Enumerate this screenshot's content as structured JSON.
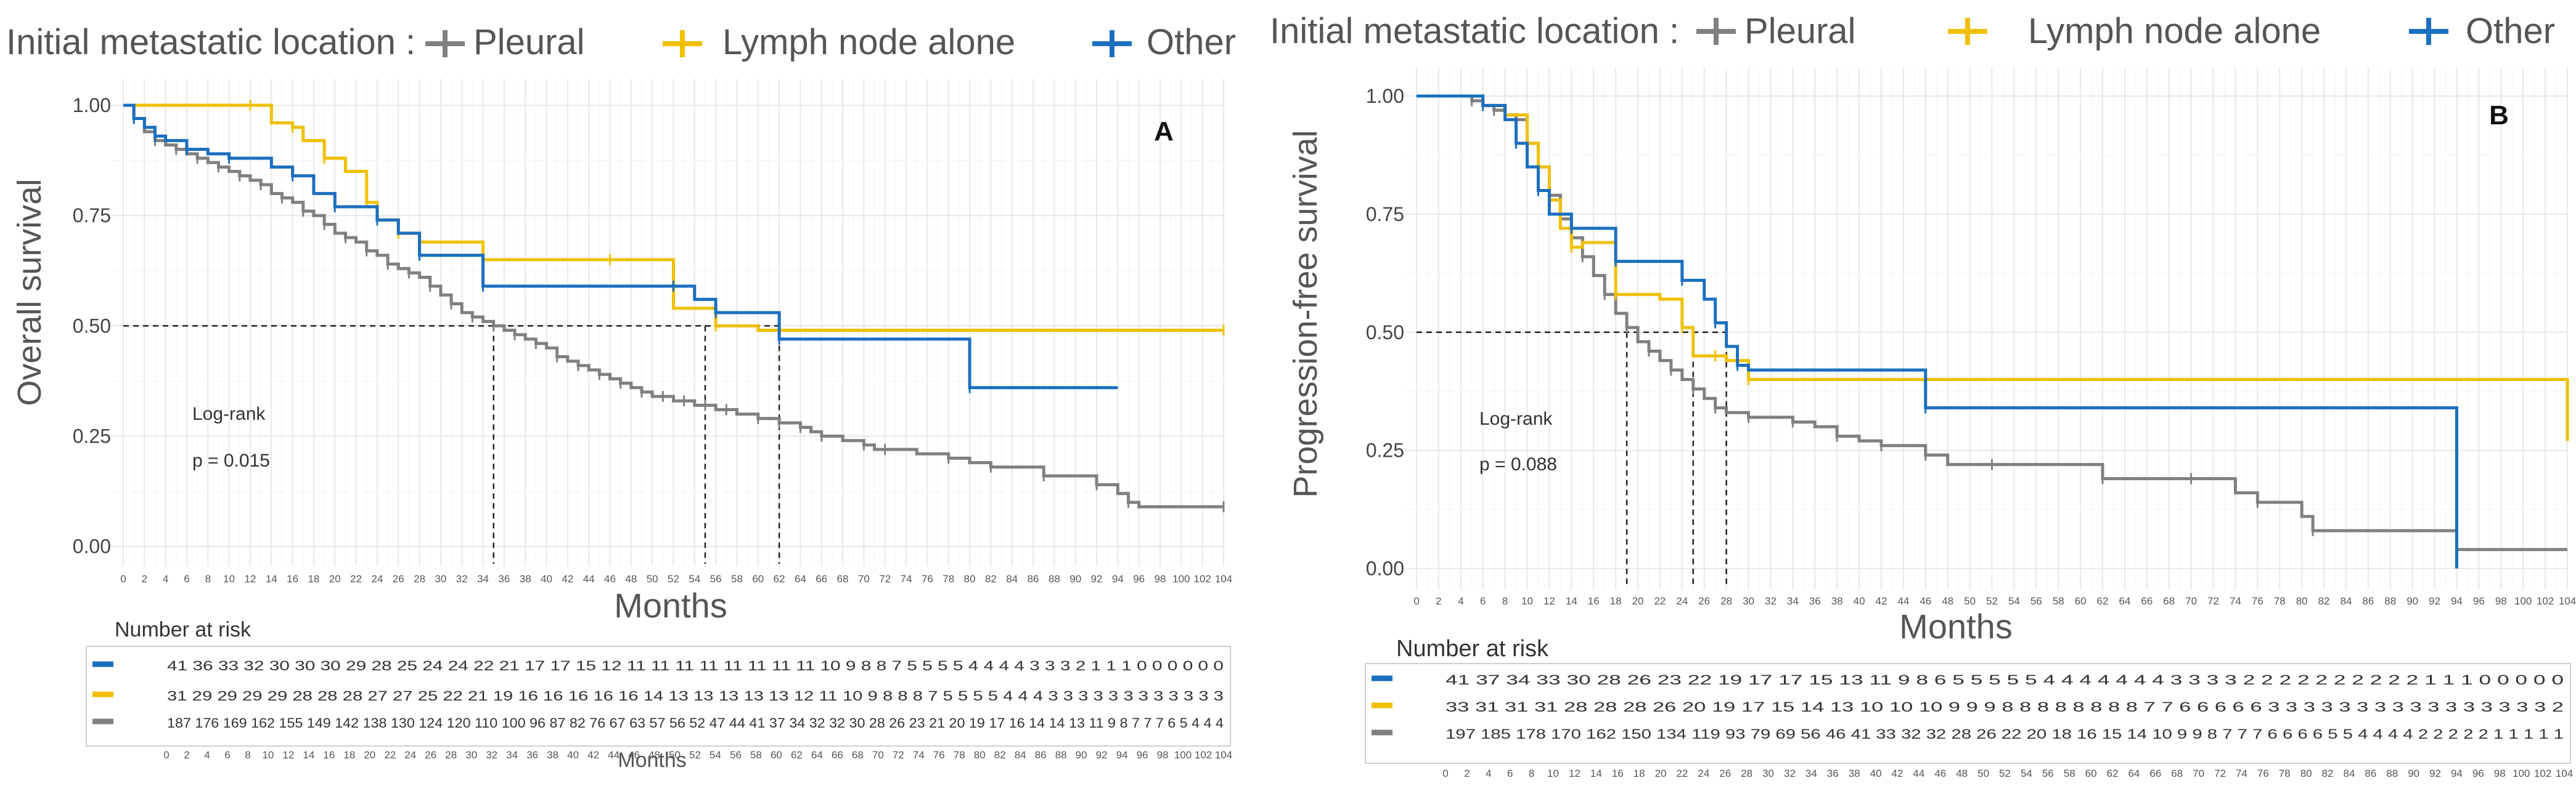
{
  "colors": {
    "pleural": "#808080",
    "lymph": "#F0C000",
    "other": "#1B6FC0",
    "grid": "#E8E8E8",
    "gridMinor": "#F3F3F3",
    "panel": "#FFFFFF",
    "text": "#555555",
    "risk_table_border": "#D0D0D0"
  },
  "chart_data": [
    {
      "type": "line",
      "subtype": "kaplan-meier",
      "panel_label": "A",
      "legend_title": "Initial metastatic location :",
      "legend_labels": [
        "Pleural",
        "Lymph node alone",
        "Other"
      ],
      "ylabel": "Overall survival",
      "xlabel": "Months",
      "ylim": [
        0,
        1
      ],
      "xlim": [
        0,
        104
      ],
      "y_ticks": [
        "0.00",
        "0.25",
        "0.50",
        "0.75",
        "1.00"
      ],
      "x_ticks": [
        0,
        2,
        4,
        6,
        8,
        10,
        12,
        14,
        16,
        18,
        20,
        22,
        24,
        26,
        28,
        30,
        32,
        34,
        36,
        38,
        40,
        42,
        44,
        46,
        48,
        50,
        52,
        54,
        56,
        58,
        60,
        62,
        64,
        66,
        68,
        70,
        72,
        74,
        76,
        78,
        80,
        82,
        84,
        86,
        88,
        90,
        92,
        94,
        96,
        98,
        100,
        102,
        104
      ],
      "annotation_title": "Log-rank",
      "annotation_p": "p = 0.015",
      "medians": {
        "Pleural": 35,
        "Lymph node alone": 55,
        "Other": 62
      },
      "series": [
        {
          "name": "Pleural",
          "key": "pleural",
          "x": [
            0,
            1,
            2,
            3,
            4,
            5,
            6,
            7,
            8,
            9,
            10,
            11,
            12,
            13,
            14,
            15,
            16,
            17,
            18,
            19,
            20,
            21,
            22,
            23,
            24,
            25,
            26,
            27,
            28,
            29,
            30,
            31,
            32,
            33,
            34,
            35,
            36,
            37,
            38,
            39,
            40,
            41,
            42,
            43,
            44,
            45,
            46,
            47,
            48,
            49,
            50,
            51,
            52,
            53,
            54,
            55,
            56,
            57,
            58,
            60,
            61,
            62,
            63,
            64,
            65,
            66,
            68,
            70,
            71,
            72,
            75,
            78,
            80,
            82,
            86,
            87,
            90,
            92,
            94,
            95,
            96,
            104
          ],
          "values": [
            1.0,
            0.97,
            0.94,
            0.92,
            0.91,
            0.9,
            0.89,
            0.88,
            0.87,
            0.86,
            0.85,
            0.84,
            0.83,
            0.82,
            0.8,
            0.79,
            0.78,
            0.76,
            0.75,
            0.73,
            0.71,
            0.7,
            0.69,
            0.67,
            0.66,
            0.64,
            0.63,
            0.62,
            0.61,
            0.59,
            0.57,
            0.55,
            0.53,
            0.52,
            0.51,
            0.5,
            0.49,
            0.48,
            0.47,
            0.46,
            0.45,
            0.43,
            0.42,
            0.41,
            0.4,
            0.39,
            0.38,
            0.37,
            0.36,
            0.35,
            0.34,
            0.34,
            0.33,
            0.33,
            0.32,
            0.32,
            0.31,
            0.31,
            0.3,
            0.29,
            0.29,
            0.28,
            0.28,
            0.27,
            0.26,
            0.25,
            0.24,
            0.23,
            0.22,
            0.22,
            0.21,
            0.2,
            0.19,
            0.18,
            0.18,
            0.16,
            0.16,
            0.14,
            0.12,
            0.1,
            0.09,
            0.09
          ]
        },
        {
          "name": "Lymph node alone",
          "key": "lymph",
          "x": [
            0,
            12,
            14,
            16,
            17,
            19,
            21,
            23,
            24,
            26,
            28,
            34,
            40,
            46,
            52,
            56,
            60,
            104
          ],
          "values": [
            1.0,
            1.0,
            0.96,
            0.95,
            0.92,
            0.88,
            0.85,
            0.78,
            0.74,
            0.71,
            0.69,
            0.65,
            0.65,
            0.65,
            0.54,
            0.5,
            0.49,
            0.49
          ]
        },
        {
          "name": "Other",
          "key": "other",
          "x": [
            0,
            1,
            2,
            3,
            4,
            6,
            8,
            10,
            14,
            16,
            18,
            20,
            22,
            24,
            26,
            28,
            30,
            34,
            42,
            52,
            54,
            56,
            60,
            62,
            70,
            80,
            94
          ],
          "values": [
            1.0,
            0.97,
            0.95,
            0.93,
            0.92,
            0.9,
            0.89,
            0.88,
            0.86,
            0.84,
            0.8,
            0.77,
            0.77,
            0.74,
            0.71,
            0.66,
            0.66,
            0.59,
            0.59,
            0.59,
            0.56,
            0.53,
            0.53,
            0.47,
            0.47,
            0.36,
            0.36
          ]
        }
      ],
      "risk_table": {
        "title": "Number at risk",
        "xlabel": "Months",
        "rows": [
          {
            "key": "other",
            "text": "41 36 33 32 30 30 30 29 28 25 24 24 22 21 17 17 15 12 11 11 11 11 11 11 11 11 10 9 8 8 7 5 5 5 5 4 4 4 4 3 3 3 2 1 1 1 0 0 0 0 0 0"
          },
          {
            "key": "lymph",
            "text": "31 29 29 29 29 28 28 28 27 27 25 22 21 19 16 16 16 16 16 14 13 13 13 13 13 12 11 10 9 8 8 8 7 5 5 5 5 4 4 4 3 3 3 3 3 3 3 3 3 3 3 3"
          },
          {
            "key": "pleural",
            "text": "187 176 169 162 155 149 142 138 130 124 120 110 100 96 87 82 76 67 63 57 56 52 47 44 41 37 34 32 32 30 28 26 23 21 20 19 17 16 14 14 13 11 9 8 7 7 7 6 5 4 4 4"
          }
        ]
      }
    },
    {
      "type": "line",
      "subtype": "kaplan-meier",
      "panel_label": "B",
      "legend_title": "Initial metastatic location :",
      "legend_labels": [
        "Pleural",
        "Lymph node alone",
        "Other"
      ],
      "ylabel": "Progression-free survival",
      "xlabel": "Months",
      "ylim": [
        0,
        1
      ],
      "xlim": [
        0,
        104
      ],
      "y_ticks": [
        "0.00",
        "0.25",
        "0.50",
        "0.75",
        "1.00"
      ],
      "x_ticks": [
        0,
        2,
        4,
        6,
        8,
        10,
        12,
        14,
        16,
        18,
        20,
        22,
        24,
        26,
        28,
        30,
        32,
        34,
        36,
        38,
        40,
        42,
        44,
        46,
        48,
        50,
        52,
        54,
        56,
        58,
        60,
        62,
        64,
        66,
        68,
        70,
        72,
        74,
        76,
        78,
        80,
        82,
        84,
        86,
        88,
        90,
        92,
        94,
        96,
        98,
        100,
        102,
        104
      ],
      "annotation_title": "Log-rank",
      "annotation_p": "p = 0.088",
      "medians": {
        "Pleural": 19,
        "Lymph node alone": 25,
        "Other": 28
      },
      "series": [
        {
          "name": "Pleural",
          "key": "pleural",
          "x": [
            0,
            5,
            6,
            7,
            8,
            9,
            10,
            11,
            12,
            13,
            14,
            15,
            16,
            17,
            18,
            19,
            20,
            21,
            22,
            23,
            24,
            25,
            26,
            27,
            28,
            30,
            32,
            34,
            36,
            38,
            40,
            42,
            44,
            46,
            48,
            52,
            56,
            62,
            64,
            70,
            74,
            76,
            80,
            81,
            82,
            94,
            104
          ],
          "values": [
            1.0,
            0.99,
            0.98,
            0.97,
            0.96,
            0.95,
            0.9,
            0.85,
            0.79,
            0.74,
            0.7,
            0.66,
            0.62,
            0.58,
            0.54,
            0.51,
            0.48,
            0.46,
            0.44,
            0.42,
            0.4,
            0.38,
            0.36,
            0.34,
            0.33,
            0.32,
            0.32,
            0.31,
            0.3,
            0.28,
            0.27,
            0.26,
            0.26,
            0.24,
            0.22,
            0.22,
            0.22,
            0.19,
            0.19,
            0.19,
            0.16,
            0.14,
            0.11,
            0.08,
            0.08,
            0.04,
            0.04
          ]
        },
        {
          "name": "Lymph node alone",
          "key": "lymph",
          "x": [
            0,
            6,
            8,
            10,
            11,
            12,
            13,
            14,
            15,
            18,
            22,
            24,
            25,
            27,
            28,
            30,
            104
          ],
          "values": [
            1.0,
            0.98,
            0.96,
            0.9,
            0.85,
            0.78,
            0.72,
            0.68,
            0.69,
            0.58,
            0.57,
            0.51,
            0.45,
            0.45,
            0.44,
            0.4,
            0.27
          ]
        },
        {
          "name": "Other",
          "key": "other",
          "x": [
            0,
            6,
            8,
            9,
            10,
            11,
            12,
            14,
            16,
            18,
            22,
            24,
            26,
            27,
            28,
            29,
            30,
            46,
            94
          ],
          "values": [
            1.0,
            0.98,
            0.95,
            0.9,
            0.85,
            0.8,
            0.75,
            0.72,
            0.72,
            0.65,
            0.65,
            0.61,
            0.57,
            0.52,
            0.47,
            0.43,
            0.42,
            0.34,
            0.0
          ]
        }
      ],
      "risk_table": {
        "title": "Number at risk",
        "xlabel": "Months",
        "rows": [
          {
            "key": "other",
            "text": "41 37 34 33 30 28 26 23 22 19 17 17 15 13 11 9 8 6 5 5 5 5 5 4 4 4 4 4 4 4 3 3 3 3 2 2 2 2 2 2 2 2 2 2 1 1 1 0 0 0 0 0"
          },
          {
            "key": "lymph",
            "text": "33 31 31 31 28 28 28 26 20 19 17 15 14 13 10 10 10 9 9 9 8 8 8 8 8 8 8 8 7 7 6 6 6 6 6 3 3 3 3 3 3 3 3 3 3 3 3 3 3 3 3 2"
          },
          {
            "key": "pleural",
            "text": "197 185 178 170 162 150 134 119 93 79 69 56 46 41 33 32 32 28 26 22 20 18 16 15 14 10 9 9 8 7 7 7 6 6 6 6 5 5 4 4 4 4 2 2 2 2 2 1 1 1 1 1"
          }
        ]
      }
    }
  ]
}
